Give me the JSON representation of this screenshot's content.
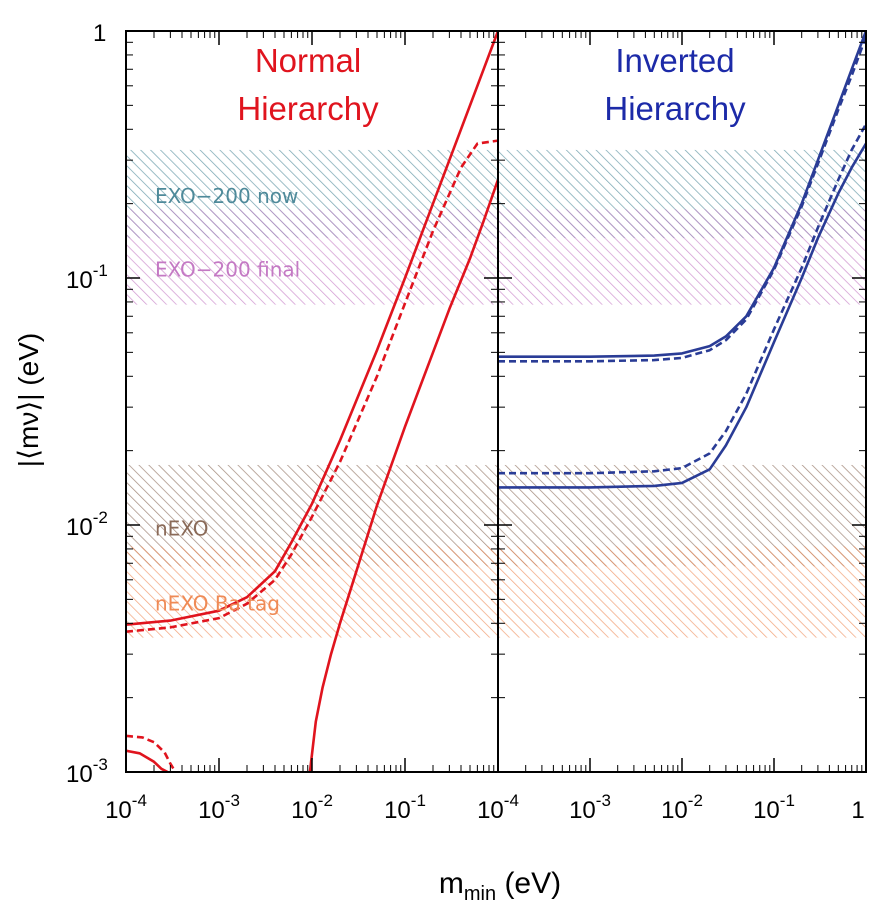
{
  "chart_data": {
    "type": "line",
    "log_x": true,
    "log_y": true,
    "xlim": [
      0.0001,
      1
    ],
    "ylim": [
      0.001,
      1
    ],
    "x_tick_values": [
      0.0001,
      0.001,
      0.01,
      0.1,
      1
    ],
    "x_tick_labels": [
      {
        "base": "10",
        "exp": "-4"
      },
      {
        "base": "10",
        "exp": "-3"
      },
      {
        "base": "10",
        "exp": "-2"
      },
      {
        "base": "10",
        "exp": "-1"
      },
      {
        "base": "1",
        "exp": ""
      }
    ],
    "y_tick_values": [
      0.001,
      0.01,
      0.1,
      1
    ],
    "y_tick_labels": [
      {
        "base": "10",
        "exp": "-3"
      },
      {
        "base": "10",
        "exp": "-2"
      },
      {
        "base": "10",
        "exp": "-1"
      },
      {
        "base": "1",
        "exp": ""
      }
    ],
    "xlabel": {
      "main": "m",
      "sub": "min",
      "unit": " (eV)"
    },
    "ylabel": "|⟨mν⟩|  (eV)",
    "bands": [
      {
        "label": "EXO−200 now",
        "y_range": [
          0.145,
          0.33
        ],
        "color": "#4e8a9a"
      },
      {
        "label": "EXO−200 final",
        "y_range": [
          0.078,
          0.19
        ],
        "color": "#c479c4"
      },
      {
        "label": "nEXO",
        "y_range": [
          0.0068,
          0.0175
        ],
        "color": "#8a6a58"
      },
      {
        "label": "nEXO Ba tag",
        "y_range": [
          0.0035,
          0.0082
        ],
        "color": "#ef8a55"
      }
    ],
    "panels": [
      {
        "title_lines": [
          "Normal",
          "Hierarchy"
        ],
        "title_color": "#e0141e",
        "line_color": "#e0141e",
        "series": [
          {
            "style": "solid",
            "x": [
              0.0001,
              0.0003,
              0.001,
              0.002,
              0.004,
              0.006,
              0.01,
              0.02,
              0.05,
              0.1,
              0.2,
              0.4,
              0.6,
              1.0
            ],
            "y": [
              0.00395,
              0.0041,
              0.0045,
              0.0051,
              0.0065,
              0.0085,
              0.0122,
              0.022,
              0.051,
              0.1,
              0.2,
              0.4,
              0.6,
              1.0
            ]
          },
          {
            "style": "dashed",
            "x": [
              0.0001,
              0.0003,
              0.001,
              0.002,
              0.004,
              0.006,
              0.01,
              0.02,
              0.05,
              0.1,
              0.2,
              0.4,
              0.6,
              1.0
            ],
            "y": [
              0.0037,
              0.00385,
              0.0042,
              0.0048,
              0.006,
              0.0076,
              0.0108,
              0.018,
              0.04,
              0.079,
              0.155,
              0.28,
              0.35,
              0.36
            ]
          },
          {
            "style": "solid",
            "x": [
              0.0095,
              0.011,
              0.013,
              0.016,
              0.02,
              0.03,
              0.05,
              0.1,
              0.2,
              0.3,
              0.5,
              0.7,
              1.0
            ],
            "y": [
              0.001,
              0.0016,
              0.0022,
              0.003,
              0.004,
              0.0065,
              0.012,
              0.025,
              0.05,
              0.075,
              0.12,
              0.17,
              0.25
            ]
          },
          {
            "style": "dashed",
            "x": [
              0.0001,
              0.00015,
              0.0002,
              0.00026,
              0.0003,
              0.00034
            ],
            "y": [
              0.0014,
              0.00138,
              0.00132,
              0.0012,
              0.00108,
              0.001
            ]
          },
          {
            "style": "solid",
            "x": [
              0.0001,
              0.00014,
              0.0002,
              0.00024,
              0.00028
            ],
            "y": [
              0.00122,
              0.00119,
              0.0011,
              0.00103,
              0.001
            ]
          }
        ]
      },
      {
        "title_lines": [
          "Inverted",
          "Hierarchy"
        ],
        "title_color": "#1c2aa8",
        "line_color": "#2a3c96",
        "series": [
          {
            "style": "solid",
            "x": [
              0.0001,
              0.001,
              0.005,
              0.01,
              0.02,
              0.03,
              0.05,
              0.1,
              0.2,
              0.3,
              0.5,
              0.7,
              1.0
            ],
            "y": [
              0.048,
              0.048,
              0.0485,
              0.0495,
              0.053,
              0.058,
              0.07,
              0.11,
              0.2,
              0.3,
              0.5,
              0.7,
              1.0
            ]
          },
          {
            "style": "dashed",
            "x": [
              0.0001,
              0.001,
              0.005,
              0.01,
              0.02,
              0.03,
              0.05,
              0.1,
              0.2,
              0.3,
              0.5,
              0.7,
              1.0
            ],
            "y": [
              0.046,
              0.046,
              0.0465,
              0.0475,
              0.051,
              0.056,
              0.068,
              0.108,
              0.195,
              0.29,
              0.48,
              0.66,
              0.95
            ]
          },
          {
            "style": "dashed",
            "x": [
              0.0001,
              0.001,
              0.005,
              0.01,
              0.02,
              0.03,
              0.05,
              0.1,
              0.2,
              0.3,
              0.5,
              0.7,
              1.0
            ],
            "y": [
              0.0162,
              0.0162,
              0.0165,
              0.017,
              0.0195,
              0.024,
              0.034,
              0.062,
              0.11,
              0.16,
              0.25,
              0.33,
              0.42
            ]
          },
          {
            "style": "solid",
            "x": [
              0.0001,
              0.001,
              0.005,
              0.01,
              0.02,
              0.03,
              0.05,
              0.1,
              0.2,
              0.3,
              0.5,
              0.7,
              1.0
            ],
            "y": [
              0.0142,
              0.0142,
              0.0144,
              0.0148,
              0.0168,
              0.021,
              0.03,
              0.055,
              0.1,
              0.145,
              0.22,
              0.28,
              0.35
            ]
          }
        ]
      }
    ]
  }
}
